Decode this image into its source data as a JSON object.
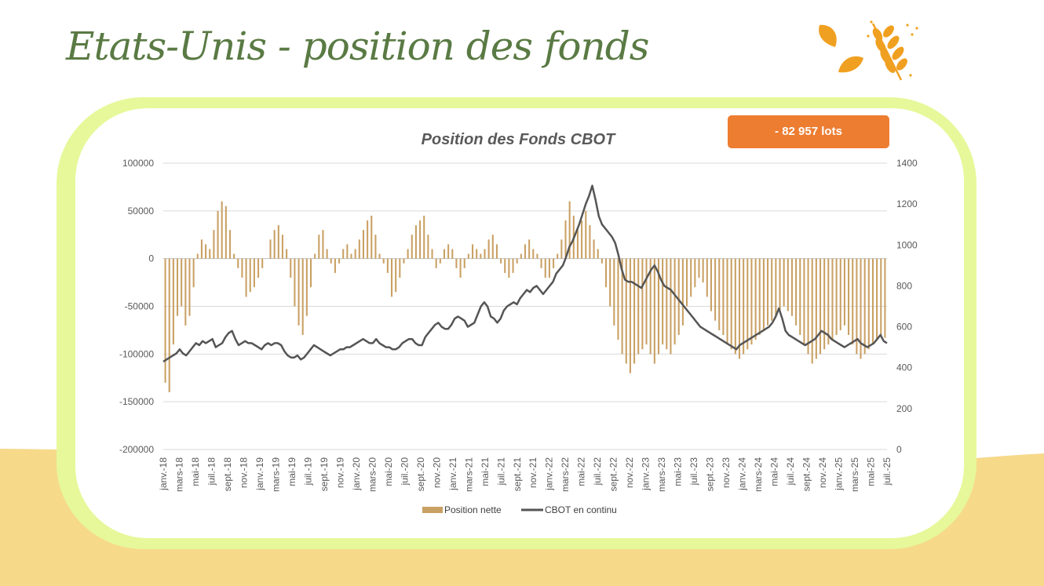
{
  "page": {
    "title": "Etats-Unis - position des fonds"
  },
  "badge": {
    "text": "- 82 957 lots",
    "color": "#ed7d31"
  },
  "decoration": {
    "icon": "wheat-leaves-icon",
    "color": "#f0a020"
  },
  "colors": {
    "card_border": "#e6f89a",
    "bottom_band": "#f7d98a",
    "title": "#5a7a44"
  },
  "chart_data": {
    "type": "bar+line",
    "title": "Position des Fonds CBOT",
    "grid": true,
    "legend_position": "bottom",
    "y_left": {
      "min": -200000,
      "max": 100000,
      "step": 50000,
      "ticks": [
        "100000",
        "50000",
        "0",
        "-50000",
        "-100000",
        "-150000",
        "-200000"
      ]
    },
    "y_right": {
      "min": 0,
      "max": 1400,
      "step": 200,
      "ticks": [
        "1400",
        "1200",
        "1000",
        "800",
        "600",
        "400",
        "200",
        "0"
      ]
    },
    "x_tick_labels": [
      "janv.-18",
      "mars-18",
      "mai-18",
      "juil.-18",
      "sept.-18",
      "nov.-18",
      "janv.-19",
      "mars-19",
      "mai-19",
      "juil.-19",
      "sept.-19",
      "nov.-19",
      "janv.-20",
      "mars-20",
      "mai-20",
      "juil.-20",
      "sept.-20",
      "nov.-20",
      "janv.-21",
      "mars-21",
      "mai-21",
      "juil.-21",
      "sept.-21",
      "nov.-21",
      "janv.-22",
      "mars-22",
      "mai-22",
      "juil.-22",
      "sept.-22",
      "nov.-22",
      "janv.-23",
      "mars-23",
      "mai-23",
      "juil.-23",
      "sept.-23",
      "nov.-23",
      "janv.-24",
      "mars-24",
      "mai-24",
      "juil.-24",
      "sept.-24",
      "nov.-24",
      "janv.-25",
      "mars-25",
      "mai-25",
      "juil.-25"
    ],
    "series": [
      {
        "name": "Position nette",
        "type": "bar",
        "axis": "left",
        "color": "#c9a063",
        "values": [
          -130000,
          -140000,
          -90000,
          -60000,
          -50000,
          -70000,
          -60000,
          -30000,
          5000,
          20000,
          15000,
          10000,
          30000,
          50000,
          60000,
          55000,
          30000,
          5000,
          -10000,
          -20000,
          -40000,
          -35000,
          -30000,
          -20000,
          -10000,
          0,
          20000,
          30000,
          35000,
          25000,
          10000,
          -20000,
          -50000,
          -70000,
          -80000,
          -60000,
          -30000,
          5000,
          25000,
          30000,
          10000,
          -5000,
          -15000,
          -5000,
          10000,
          15000,
          5000,
          10000,
          20000,
          30000,
          40000,
          45000,
          25000,
          5000,
          -5000,
          -15000,
          -40000,
          -35000,
          -20000,
          -5000,
          10000,
          25000,
          35000,
          40000,
          45000,
          25000,
          10000,
          -10000,
          -5000,
          10000,
          15000,
          10000,
          -10000,
          -20000,
          -10000,
          5000,
          15000,
          10000,
          5000,
          10000,
          20000,
          25000,
          15000,
          -5000,
          -15000,
          -20000,
          -15000,
          -5000,
          5000,
          15000,
          20000,
          10000,
          5000,
          -10000,
          -20000,
          -20000,
          -10000,
          5000,
          20000,
          40000,
          60000,
          45000,
          30000,
          40000,
          50000,
          35000,
          20000,
          10000,
          -5000,
          -30000,
          -50000,
          -70000,
          -85000,
          -100000,
          -110000,
          -120000,
          -110000,
          -100000,
          -95000,
          -90000,
          -100000,
          -110000,
          -100000,
          -90000,
          -95000,
          -100000,
          -90000,
          -80000,
          -70000,
          -50000,
          -40000,
          -30000,
          -20000,
          -25000,
          -40000,
          -55000,
          -65000,
          -75000,
          -80000,
          -90000,
          -95000,
          -100000,
          -105000,
          -100000,
          -95000,
          -90000,
          -85000,
          -80000,
          -75000,
          -70000,
          -65000,
          -60000,
          -55000,
          -50000,
          -55000,
          -60000,
          -70000,
          -80000,
          -90000,
          -100000,
          -110000,
          -105000,
          -100000,
          -95000,
          -90000,
          -85000,
          -80000,
          -75000,
          -70000,
          -80000,
          -90000,
          -100000,
          -105000,
          -100000,
          -95000,
          -90000,
          -85000,
          -80000,
          -82957
        ]
      },
      {
        "name": "CBOT en continu",
        "type": "line",
        "axis": "right",
        "color": "#555555",
        "values": [
          430,
          440,
          450,
          460,
          470,
          490,
          470,
          460,
          480,
          500,
          520,
          510,
          530,
          520,
          530,
          540,
          500,
          510,
          520,
          550,
          570,
          580,
          540,
          510,
          520,
          530,
          520,
          520,
          510,
          500,
          490,
          510,
          520,
          510,
          520,
          520,
          510,
          480,
          460,
          450,
          450,
          460,
          440,
          450,
          470,
          490,
          510,
          500,
          490,
          480,
          470,
          460,
          470,
          480,
          490,
          490,
          500,
          500,
          510,
          520,
          530,
          540,
          530,
          520,
          520,
          540,
          520,
          510,
          500,
          500,
          490,
          490,
          500,
          520,
          530,
          540,
          540,
          520,
          510,
          510,
          550,
          570,
          590,
          610,
          620,
          600,
          590,
          590,
          610,
          640,
          650,
          640,
          630,
          600,
          610,
          620,
          660,
          700,
          720,
          700,
          650,
          640,
          620,
          640,
          680,
          700,
          710,
          720,
          710,
          740,
          760,
          780,
          770,
          790,
          800,
          780,
          760,
          780,
          800,
          820,
          860,
          880,
          900,
          940,
          990,
          1020,
          1060,
          1100,
          1150,
          1200,
          1240,
          1290,
          1220,
          1140,
          1100,
          1080,
          1060,
          1040,
          1010,
          950,
          880,
          830,
          820,
          820,
          810,
          800,
          790,
          820,
          850,
          880,
          900,
          870,
          830,
          800,
          790,
          780,
          760,
          740,
          720,
          700,
          680,
          660,
          640,
          620,
          600,
          590,
          580,
          570,
          560,
          550,
          540,
          530,
          520,
          510,
          500,
          490,
          510,
          520,
          530,
          540,
          550,
          560,
          570,
          580,
          590,
          600,
          620,
          650,
          690,
          640,
          580,
          560,
          550,
          540,
          530,
          520,
          510,
          520,
          530,
          540,
          560,
          580,
          570,
          560,
          540,
          530,
          520,
          510,
          500,
          510,
          520,
          530,
          540,
          520,
          510,
          500,
          510,
          520,
          540,
          560,
          530,
          520
        ]
      }
    ]
  }
}
